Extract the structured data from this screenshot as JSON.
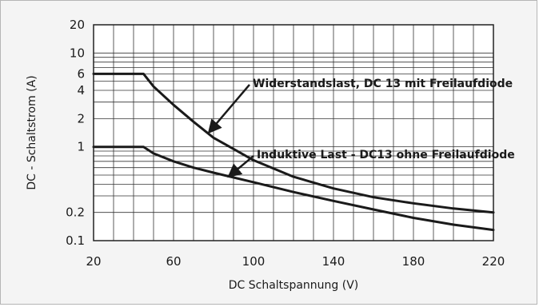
{
  "chart_data": {
    "type": "line",
    "title": "",
    "xlabel": "DC Schaltspannung (V)",
    "ylabel": "DC - Schaltstrom (A)",
    "x_scale": "linear",
    "y_scale": "log",
    "xlim": [
      20,
      220
    ],
    "ylim": [
      0.1,
      20
    ],
    "x_ticks": [
      20,
      60,
      100,
      140,
      180,
      220
    ],
    "y_ticks": [
      {
        "value": 0.1,
        "label": "0.1"
      },
      {
        "value": 0.2,
        "label": "0.2"
      },
      {
        "value": 1,
        "label": "1"
      },
      {
        "value": 2,
        "label": "2"
      },
      {
        "value": 4,
        "label": "4"
      },
      {
        "value": 6,
        "label": "6"
      },
      {
        "value": 10,
        "label": "10"
      },
      {
        "value": 20,
        "label": "20"
      }
    ],
    "x_grid": [
      20,
      30,
      40,
      50,
      60,
      70,
      80,
      90,
      100,
      110,
      120,
      130,
      140,
      150,
      160,
      170,
      180,
      190,
      200,
      210,
      220
    ],
    "y_grid": [
      0.1,
      0.2,
      0.3,
      0.4,
      0.5,
      0.6,
      0.7,
      0.8,
      0.9,
      1,
      2,
      3,
      4,
      5,
      6,
      7,
      8,
      9,
      10,
      20
    ],
    "grid": true,
    "series": [
      {
        "name": "Widerstandslast, DC 13 mit Freilaufdiode",
        "x": [
          20,
          45,
          50,
          60,
          70,
          80,
          90,
          100,
          120,
          140,
          160,
          180,
          200,
          220
        ],
        "y": [
          6,
          6,
          4.4,
          2.8,
          1.85,
          1.25,
          0.95,
          0.72,
          0.48,
          0.36,
          0.29,
          0.25,
          0.22,
          0.2
        ]
      },
      {
        "name": "Induktive Last - DC13 ohne Freilaufdiode",
        "x": [
          20,
          45,
          50,
          60,
          70,
          80,
          100,
          120,
          140,
          160,
          180,
          200,
          220
        ],
        "y": [
          1,
          1,
          0.85,
          0.7,
          0.6,
          0.53,
          0.42,
          0.33,
          0.265,
          0.215,
          0.175,
          0.148,
          0.13
        ]
      }
    ],
    "annotations": [
      {
        "text": "Widerstandslast, DC 13 mit Freilaufdiode",
        "series": 0,
        "arrow_to": {
          "x": 78,
          "y": 1.45
        },
        "arrow_from": {
          "x": 98,
          "y": 4.6
        }
      },
      {
        "text": "Induktive Last - DC13 ohne Freilaufdiode",
        "series": 1,
        "arrow_to": {
          "x": 88,
          "y": 0.49
        },
        "arrow_from": {
          "x": 100,
          "y": 0.8
        }
      }
    ]
  }
}
